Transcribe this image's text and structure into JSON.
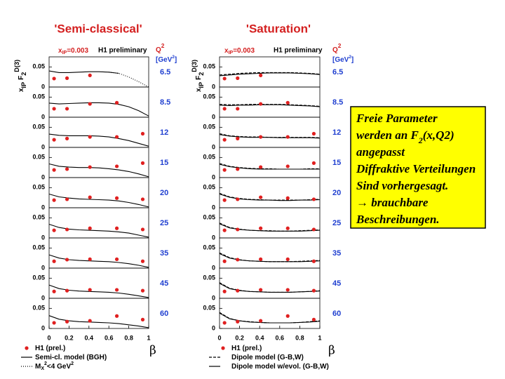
{
  "chart_data": [
    {
      "type": "multipanel-scatter",
      "title": "'Semi-classical'",
      "header": {
        "x_parts": [
          "x",
          "IP",
          "=0.003"
        ],
        "x_format": [
          "base",
          "sub",
          "base"
        ],
        "prelim": "H1 preliminary",
        "q2": [
          "Q",
          "2"
        ],
        "q2_format": [
          "base",
          "sup"
        ],
        "unit": [
          "[GeV",
          "2",
          "]"
        ],
        "unit_format": [
          "base",
          "sup",
          "base"
        ]
      },
      "ylabel": [
        "x",
        "IP",
        "F",
        "2",
        "D(3)"
      ],
      "ylabel_format": [
        "base",
        "sub",
        "base",
        "sub",
        "sup"
      ],
      "xlabel": "β",
      "xlim": [
        0,
        1
      ],
      "xticks": [
        0,
        0.2,
        0.4,
        0.6,
        0.8,
        1
      ],
      "ylim": [
        0,
        0.075
      ],
      "yticks": [
        0,
        0.05
      ],
      "x": [
        0.05,
        0.18,
        0.41,
        0.68,
        0.94
      ],
      "curve_x": [
        0,
        0.1,
        0.2,
        0.3,
        0.4,
        0.5,
        0.6,
        0.7,
        0.8,
        0.9,
        1
      ],
      "series": [
        {
          "name": [
            "H1 (prel.)"
          ],
          "name_format": [
            "base"
          ],
          "color": "#e02020",
          "style": "points"
        },
        {
          "name": [
            "Semi-cl. model (BGH)"
          ],
          "name_format": [
            "base"
          ],
          "color": "#000000",
          "style": "solid"
        },
        {
          "name": [
            "M",
            "X",
            "2",
            "<4 GeV",
            "2"
          ],
          "name_format": [
            "base",
            "sub",
            "sup",
            "base",
            "sup"
          ],
          "color": "#000000",
          "style": "dotted"
        }
      ],
      "panels": [
        {
          "label": "6.5",
          "values": [
            0.021,
            0.022,
            0.029,
            null,
            null
          ],
          "curves": [
            [
              0.04,
              0.036,
              0.036,
              0.037,
              0.038,
              0.038,
              0.037,
              0.034,
              null,
              null,
              null
            ],
            [
              null,
              null,
              null,
              null,
              null,
              null,
              0.037,
              0.034,
              0.025,
              0.013,
              0.0
            ]
          ]
        },
        {
          "label": "8.5",
          "values": [
            0.021,
            0.021,
            0.033,
            0.036,
            null
          ],
          "curves": [
            [
              0.035,
              0.033,
              0.034,
              0.035,
              0.036,
              0.036,
              0.035,
              0.032,
              0.026,
              0.016,
              0.003
            ],
            [
              null,
              null,
              null,
              null,
              null,
              null,
              null,
              null,
              null,
              null,
              null
            ]
          ]
        },
        {
          "label": "12",
          "values": [
            0.019,
            0.022,
            0.026,
            0.026,
            0.034
          ],
          "curves": [
            [
              0.033,
              0.03,
              0.029,
              0.029,
              0.029,
              0.028,
              0.026,
              0.022,
              0.017,
              0.01,
              0.003
            ],
            [
              null,
              null,
              null,
              null,
              null,
              null,
              null,
              null,
              null,
              null,
              null
            ]
          ]
        },
        {
          "label": "15",
          "values": [
            0.019,
            0.021,
            0.026,
            0.028,
            0.036
          ],
          "curves": [
            [
              0.034,
              0.028,
              0.026,
              0.025,
              0.025,
              0.024,
              0.022,
              0.019,
              0.015,
              0.009,
              0.002
            ],
            [
              null,
              null,
              null,
              null,
              null,
              null,
              null,
              null,
              null,
              null,
              null
            ]
          ]
        },
        {
          "label": "20",
          "values": [
            0.019,
            0.021,
            0.026,
            0.024,
            0.021
          ],
          "curves": [
            [
              0.034,
              0.027,
              0.024,
              0.022,
              0.021,
              0.02,
              0.019,
              0.017,
              0.013,
              0.008,
              0.002
            ],
            [
              null,
              null,
              null,
              null,
              null,
              null,
              null,
              null,
              null,
              null,
              null
            ]
          ]
        },
        {
          "label": "25",
          "values": [
            0.019,
            0.021,
            0.024,
            0.024,
            0.021
          ],
          "curves": [
            [
              0.034,
              0.026,
              0.022,
              0.02,
              0.019,
              0.018,
              0.017,
              0.015,
              0.012,
              0.007,
              0.002
            ],
            [
              null,
              null,
              null,
              null,
              null,
              null,
              null,
              null,
              null,
              null,
              null
            ]
          ]
        },
        {
          "label": "35",
          "values": [
            0.017,
            0.021,
            0.022,
            0.022,
            0.017
          ],
          "curves": [
            [
              0.033,
              0.025,
              0.021,
              0.019,
              0.018,
              0.017,
              0.016,
              0.014,
              0.011,
              0.007,
              0.002
            ],
            [
              null,
              null,
              null,
              null,
              null,
              null,
              null,
              null,
              null,
              null,
              null
            ]
          ]
        },
        {
          "label": "45",
          "values": [
            0.017,
            0.019,
            0.021,
            0.021,
            0.019
          ],
          "curves": [
            [
              0.033,
              0.024,
              0.02,
              0.018,
              0.017,
              0.016,
              0.015,
              0.013,
              0.01,
              0.006,
              0.002
            ],
            [
              null,
              null,
              null,
              null,
              null,
              null,
              null,
              null,
              null,
              null,
              null
            ]
          ]
        },
        {
          "label": "60",
          "values": [
            0.014,
            0.017,
            0.019,
            0.031,
            0.022
          ],
          "curves": [
            [
              0.032,
              0.023,
              0.019,
              0.017,
              0.016,
              0.015,
              0.014,
              0.012,
              0.009,
              0.006,
              0.002
            ],
            [
              null,
              null,
              null,
              null,
              null,
              null,
              null,
              null,
              null,
              null,
              null
            ]
          ]
        }
      ]
    },
    {
      "type": "multipanel-scatter",
      "title": "'Saturation'",
      "header": {
        "x_parts": [
          "x",
          "IP",
          "=0.003"
        ],
        "x_format": [
          "base",
          "sub",
          "base"
        ],
        "prelim": "H1 preliminary",
        "q2": [
          "Q",
          "2"
        ],
        "q2_format": [
          "base",
          "sup"
        ],
        "unit": [
          "[GeV",
          "2",
          "]"
        ],
        "unit_format": [
          "base",
          "sup",
          "base"
        ]
      },
      "ylabel": [
        "x",
        "IP",
        "F",
        "2",
        "D(3)"
      ],
      "ylabel_format": [
        "base",
        "sub",
        "base",
        "sub",
        "sup"
      ],
      "xlabel": "β",
      "xlim": [
        0,
        1
      ],
      "xticks": [
        0,
        0.2,
        0.4,
        0.6,
        0.8,
        1
      ],
      "ylim": [
        0,
        0.075
      ],
      "yticks": [
        0,
        0.05
      ],
      "x": [
        0.05,
        0.18,
        0.41,
        0.68,
        0.94
      ],
      "curve_x": [
        0,
        0.1,
        0.2,
        0.3,
        0.4,
        0.5,
        0.6,
        0.7,
        0.8,
        0.9,
        1
      ],
      "series": [
        {
          "name": [
            "H1 (prel.)"
          ],
          "name_format": [
            "base"
          ],
          "color": "#e02020",
          "style": "points"
        },
        {
          "name": [
            "Dipole model (G-B,W)"
          ],
          "name_format": [
            "base"
          ],
          "color": "#000000",
          "style": "dashed"
        },
        {
          "name": [
            "Dipole model w/evol. (G-B,W)"
          ],
          "name_format": [
            "base"
          ],
          "color": "#000000",
          "style": "solid"
        }
      ],
      "panels": [
        {
          "label": "6.5",
          "values": [
            0.021,
            0.022,
            0.029,
            null,
            null
          ],
          "curves": [
            [
              0.03,
              0.032,
              0.034,
              0.035,
              0.036,
              0.036,
              0.036,
              0.036,
              0.035,
              0.034,
              0.032
            ],
            [
              0.028,
              0.03,
              0.032,
              0.033,
              0.034,
              0.035,
              0.035,
              0.035,
              0.034,
              0.033,
              0.031
            ]
          ]
        },
        {
          "label": "8.5",
          "values": [
            0.021,
            0.021,
            0.033,
            0.036,
            null
          ],
          "curves": [
            [
              0.032,
              0.031,
              0.031,
              0.032,
              0.032,
              0.032,
              0.032,
              0.031,
              0.03,
              0.029,
              0.027
            ],
            [
              0.03,
              0.029,
              0.03,
              0.03,
              0.031,
              0.031,
              0.031,
              0.03,
              0.029,
              0.028,
              0.026
            ]
          ]
        },
        {
          "label": "12",
          "values": [
            0.019,
            0.022,
            0.026,
            0.026,
            0.034
          ],
          "curves": [
            [
              0.034,
              0.029,
              0.027,
              0.026,
              0.026,
              0.025,
              0.025,
              0.025,
              0.025,
              0.025,
              0.024
            ],
            [
              0.032,
              0.028,
              0.026,
              0.025,
              0.025,
              0.025,
              0.024,
              0.024,
              0.024,
              0.024,
              0.023
            ]
          ]
        },
        {
          "label": "15",
          "values": [
            0.019,
            0.021,
            0.026,
            0.028,
            0.036
          ],
          "curves": [
            [
              0.035,
              0.028,
              0.025,
              0.023,
              0.022,
              0.022,
              0.021,
              0.021,
              0.021,
              0.022,
              0.022
            ],
            [
              0.033,
              0.027,
              0.024,
              0.022,
              0.021,
              0.021,
              0.021,
              0.021,
              0.021,
              0.021,
              0.021
            ]
          ]
        },
        {
          "label": "20",
          "values": [
            0.019,
            0.021,
            0.026,
            0.024,
            0.021
          ],
          "curves": [
            [
              0.036,
              0.027,
              0.023,
              0.021,
              0.02,
              0.019,
              0.019,
              0.019,
              0.019,
              0.02,
              0.021
            ],
            [
              0.034,
              0.026,
              0.022,
              0.02,
              0.019,
              0.019,
              0.018,
              0.018,
              0.019,
              0.019,
              0.02
            ]
          ]
        },
        {
          "label": "25",
          "values": [
            0.019,
            0.021,
            0.024,
            0.024,
            0.021
          ],
          "curves": [
            [
              0.037,
              0.026,
              0.022,
              0.019,
              0.018,
              0.018,
              0.017,
              0.017,
              0.018,
              0.019,
              0.02
            ],
            [
              0.035,
              0.025,
              0.021,
              0.019,
              0.018,
              0.017,
              0.017,
              0.017,
              0.017,
              0.018,
              0.019
            ]
          ]
        },
        {
          "label": "35",
          "values": [
            0.017,
            0.021,
            0.022,
            0.022,
            0.017
          ],
          "curves": [
            [
              0.038,
              0.026,
              0.021,
              0.018,
              0.017,
              0.016,
              0.016,
              0.016,
              0.017,
              0.018,
              0.019
            ],
            [
              0.036,
              0.025,
              0.02,
              0.018,
              0.017,
              0.016,
              0.016,
              0.016,
              0.016,
              0.017,
              0.018
            ]
          ]
        },
        {
          "label": "45",
          "values": [
            0.017,
            0.019,
            0.021,
            0.021,
            0.019
          ],
          "curves": [
            [
              0.039,
              0.025,
              0.02,
              0.017,
              0.016,
              0.015,
              0.015,
              0.015,
              0.016,
              0.017,
              0.019
            ],
            [
              0.037,
              0.024,
              0.019,
              0.017,
              0.016,
              0.015,
              0.015,
              0.015,
              0.016,
              0.017,
              0.018
            ]
          ]
        },
        {
          "label": "60",
          "values": [
            0.014,
            0.017,
            0.019,
            0.031,
            0.022
          ],
          "curves": [
            [
              0.04,
              0.025,
              0.019,
              0.017,
              0.015,
              0.014,
              0.014,
              0.014,
              0.015,
              0.017,
              0.019
            ],
            [
              0.038,
              0.024,
              0.019,
              0.016,
              0.015,
              0.014,
              0.014,
              0.014,
              0.015,
              0.016,
              0.018
            ]
          ]
        }
      ]
    }
  ],
  "box": {
    "lines": [
      [
        "Freie Parameter"
      ],
      [
        "werden an F",
        "2",
        "(x,Q2)"
      ],
      [
        "angepasst"
      ],
      [
        "Diffraktive Verteilungen"
      ],
      [
        "Sind vorhergesagt."
      ],
      [
        "→ brauchbare"
      ],
      [
        "Beschreibungen."
      ]
    ],
    "formats": [
      [
        "base"
      ],
      [
        "base",
        "sub",
        "base"
      ],
      [
        "base"
      ],
      [
        "base"
      ],
      [
        "base"
      ],
      [
        "base"
      ],
      [
        "base"
      ]
    ]
  }
}
